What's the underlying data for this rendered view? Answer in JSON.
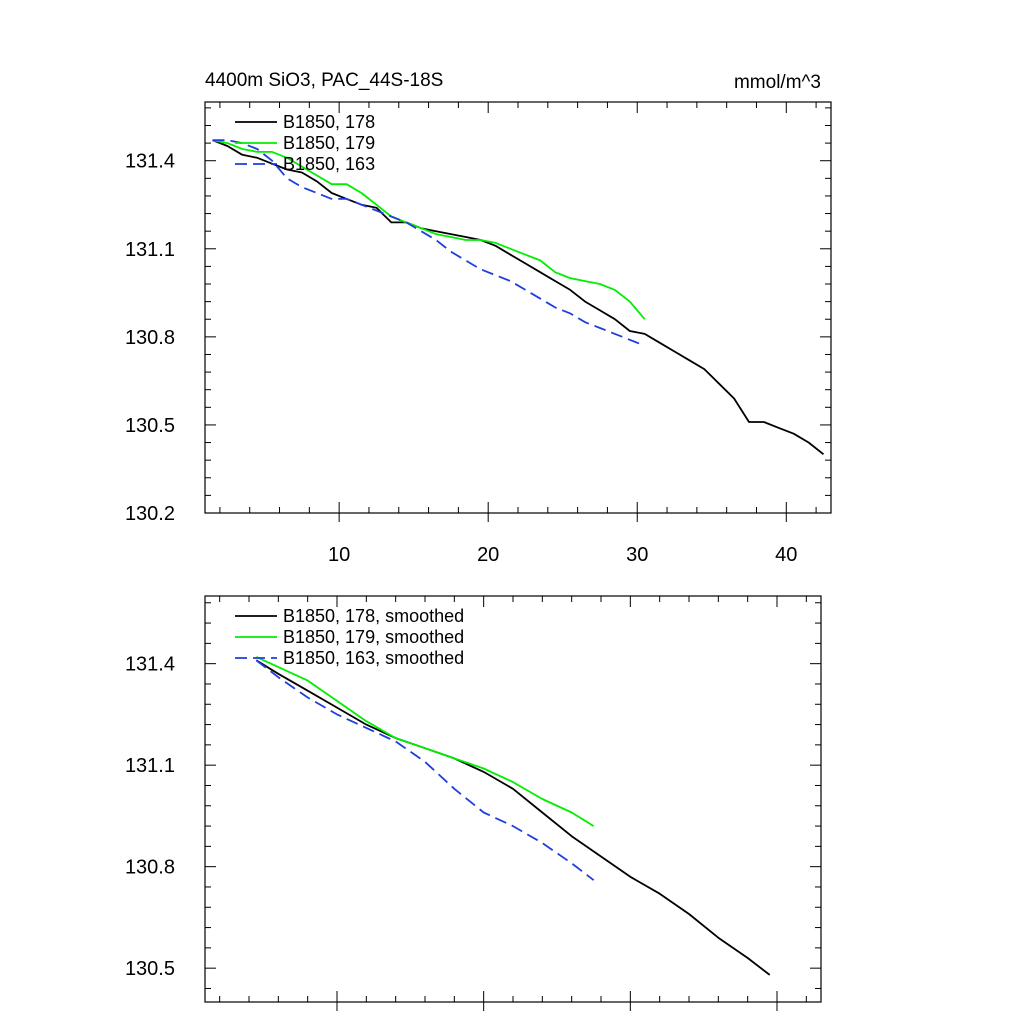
{
  "chart_data": [
    {
      "type": "line",
      "title": "4400m SiO3, PAC_44S-18S",
      "units": "mmol/m^3",
      "xlim": [
        1,
        43
      ],
      "ylim": [
        130.2,
        131.6
      ],
      "x_ticks": [
        10,
        20,
        30,
        40
      ],
      "x_tick_labels": [
        "10",
        "20",
        "30",
        "40"
      ],
      "y_ticks": [
        130.2,
        130.5,
        130.8,
        131.1,
        131.4
      ],
      "y_tick_labels": [
        "130.2",
        "130.5",
        "130.8",
        "131.1",
        "131.4"
      ],
      "legend_position": "top-left",
      "series": [
        {
          "name": "B1850, 178",
          "color": "#000000",
          "dash": "solid",
          "x": [
            1.5,
            2.5,
            3.5,
            4.5,
            5.5,
            6.5,
            7.5,
            8.5,
            9.5,
            10.5,
            11.5,
            12.5,
            13.5,
            14.5,
            15.5,
            16.5,
            17.5,
            18.5,
            19.5,
            20.5,
            21.5,
            22.5,
            23.5,
            24.5,
            25.5,
            26.5,
            27.5,
            28.5,
            29.5,
            30.5,
            31.5,
            32.5,
            33.5,
            34.5,
            35.5,
            36.5,
            37.5,
            38.5,
            39.5,
            40.5,
            41.5,
            42.5
          ],
          "y": [
            131.47,
            131.45,
            131.42,
            131.41,
            131.39,
            131.37,
            131.36,
            131.33,
            131.29,
            131.27,
            131.25,
            131.24,
            131.19,
            131.19,
            131.17,
            131.16,
            131.15,
            131.14,
            131.13,
            131.11,
            131.08,
            131.05,
            131.02,
            130.99,
            130.96,
            130.92,
            130.89,
            130.86,
            130.82,
            130.81,
            130.78,
            130.75,
            130.72,
            130.69,
            130.64,
            130.59,
            130.51,
            130.51,
            130.49,
            130.47,
            130.44,
            130.4
          ]
        },
        {
          "name": "B1850, 179",
          "color": "#00ee00",
          "dash": "solid",
          "x": [
            1.5,
            2.5,
            3.5,
            4.5,
            5.5,
            6.5,
            7.5,
            8.5,
            9.5,
            10.5,
            11.5,
            12.5,
            13.5,
            14.5,
            15.5,
            16.5,
            17.5,
            18.5,
            19.5,
            20.5,
            21.5,
            22.5,
            23.5,
            24.5,
            25.5,
            26.5,
            27.5,
            28.5,
            29.5,
            30.5
          ],
          "y": [
            131.47,
            131.46,
            131.44,
            131.43,
            131.43,
            131.41,
            131.38,
            131.35,
            131.32,
            131.32,
            131.29,
            131.25,
            131.21,
            131.19,
            131.17,
            131.15,
            131.14,
            131.13,
            131.13,
            131.12,
            131.1,
            131.08,
            131.06,
            131.02,
            131.0,
            130.99,
            130.98,
            130.96,
            130.92,
            130.86
          ]
        },
        {
          "name": "B1850, 163",
          "color": "#1f3fdd",
          "dash": "dashed",
          "x": [
            1.5,
            2.5,
            3.5,
            4.5,
            5.5,
            6.5,
            7.5,
            8.5,
            9.5,
            10.5,
            11.5,
            12.5,
            13.5,
            14.5,
            15.5,
            16.5,
            17.5,
            18.5,
            19.5,
            20.5,
            21.5,
            22.5,
            23.5,
            24.5,
            25.5,
            26.5,
            27.5,
            28.5,
            29.5,
            30.5
          ],
          "y": [
            131.47,
            131.47,
            131.46,
            131.44,
            131.4,
            131.34,
            131.31,
            131.29,
            131.27,
            131.27,
            131.25,
            131.23,
            131.21,
            131.19,
            131.16,
            131.13,
            131.09,
            131.06,
            131.03,
            131.01,
            130.99,
            130.96,
            130.93,
            130.9,
            130.88,
            130.85,
            130.83,
            130.81,
            130.79,
            130.77
          ]
        }
      ]
    },
    {
      "type": "line",
      "title": "",
      "xlim": [
        1,
        43
      ],
      "ylim": [
        130.4,
        131.6
      ],
      "x_ticks": [
        10,
        20,
        30,
        40
      ],
      "x_tick_labels": [],
      "y_ticks": [
        130.5,
        130.8,
        131.1,
        131.4
      ],
      "y_tick_labels": [
        "130.5",
        "130.8",
        "131.1",
        "131.4"
      ],
      "legend_position": "top-left",
      "series": [
        {
          "name": "B1850, 178, smoothed",
          "color": "#000000",
          "dash": "solid",
          "x": [
            4.5,
            6,
            8,
            10,
            12,
            14,
            16,
            18,
            20,
            22,
            24,
            26,
            28,
            30,
            32,
            34,
            36,
            38,
            39.5
          ],
          "y": [
            131.41,
            131.37,
            131.32,
            131.27,
            131.22,
            131.18,
            131.15,
            131.12,
            131.08,
            131.03,
            130.96,
            130.89,
            130.83,
            130.77,
            130.72,
            130.66,
            130.59,
            130.53,
            130.48
          ]
        },
        {
          "name": "B1850, 179, smoothed",
          "color": "#00ee00",
          "dash": "solid",
          "x": [
            4.5,
            6,
            8,
            10,
            12,
            14,
            16,
            18,
            20,
            22,
            24,
            26,
            27.5
          ],
          "y": [
            131.42,
            131.39,
            131.35,
            131.29,
            131.23,
            131.18,
            131.15,
            131.12,
            131.09,
            131.05,
            131.0,
            130.96,
            130.92
          ]
        },
        {
          "name": "B1850, 163, smoothed",
          "color": "#1f3fdd",
          "dash": "dashed",
          "x": [
            4.5,
            6,
            8,
            10,
            12,
            14,
            16,
            18,
            20,
            22,
            24,
            26,
            27.5
          ],
          "y": [
            131.41,
            131.36,
            131.3,
            131.25,
            131.21,
            131.17,
            131.11,
            131.03,
            130.96,
            130.92,
            130.87,
            130.81,
            130.76
          ]
        }
      ]
    }
  ]
}
